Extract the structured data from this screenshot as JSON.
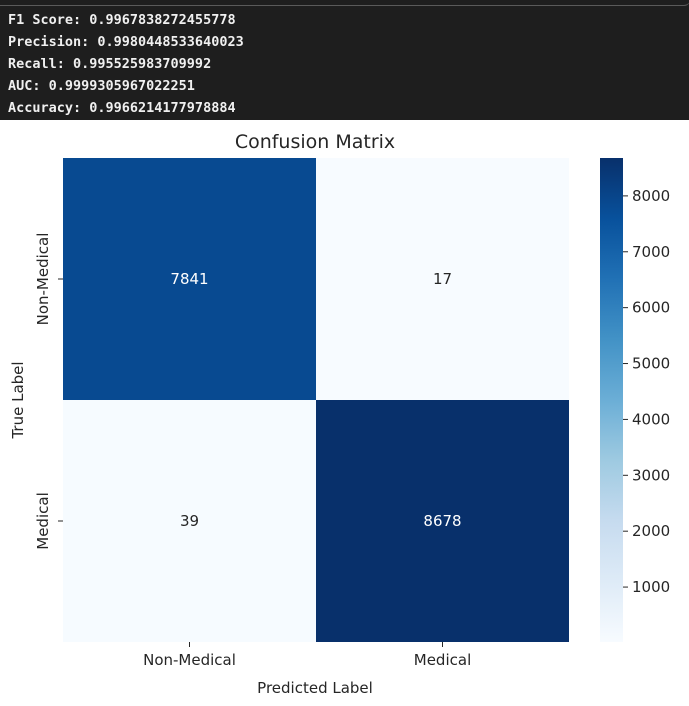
{
  "console": {
    "lines": [
      "F1 Score: 0.9967838272455778",
      "Precision: 0.9980448533640023",
      "Recall: 0.995525983709992",
      "AUC: 0.9999305967022251",
      "Accuracy: 0.9966214177978884"
    ]
  },
  "chart_data": {
    "type": "heatmap",
    "title": "Confusion Matrix",
    "xlabel": "Predicted Label",
    "ylabel": "True Label",
    "x_categories": [
      "Non-Medical",
      "Medical"
    ],
    "y_categories": [
      "Non-Medical",
      "Medical"
    ],
    "values": [
      [
        7841,
        17
      ],
      [
        39,
        8678
      ]
    ],
    "colormap": "Blues",
    "colorbar": {
      "min": 17,
      "max": 8678,
      "ticks": [
        1000,
        2000,
        3000,
        4000,
        5000,
        6000,
        7000,
        8000
      ]
    },
    "colors": {
      "low": "#f7fbff",
      "high": "#08306b",
      "light_text": "#ffffff",
      "dark_text": "#262626"
    }
  }
}
